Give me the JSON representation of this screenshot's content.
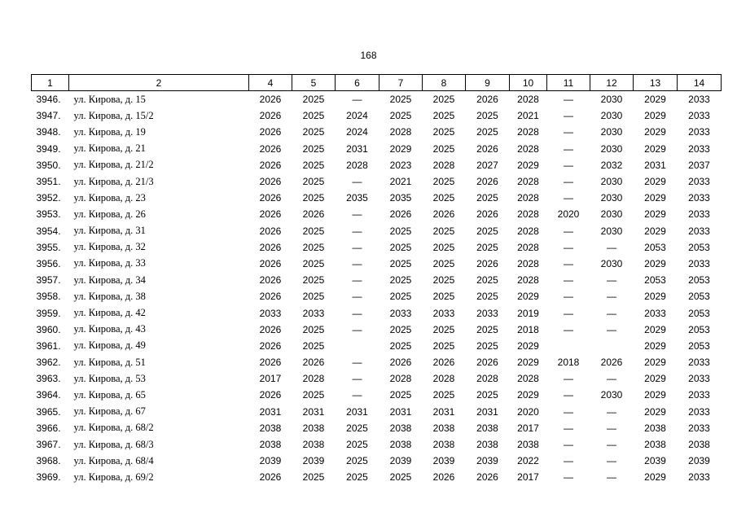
{
  "page_number": "168",
  "table": {
    "header": [
      "1",
      "2",
      "4",
      "5",
      "6",
      "7",
      "8",
      "9",
      "10",
      "11",
      "12",
      "13",
      "14"
    ],
    "rows": [
      [
        "3946.",
        "ул. Кирова, д. 15",
        "2026",
        "2025",
        "—",
        "2025",
        "2025",
        "2026",
        "2028",
        "—",
        "2030",
        "2029",
        "2033"
      ],
      [
        "3947.",
        "ул. Кирова, д. 15/2",
        "2026",
        "2025",
        "2024",
        "2025",
        "2025",
        "2025",
        "2021",
        "—",
        "2030",
        "2029",
        "2033"
      ],
      [
        "3948.",
        "ул. Кирова, д. 19",
        "2026",
        "2025",
        "2024",
        "2028",
        "2025",
        "2025",
        "2028",
        "—",
        "2030",
        "2029",
        "2033"
      ],
      [
        "3949.",
        "ул. Кирова, д. 21",
        "2026",
        "2025",
        "2031",
        "2029",
        "2025",
        "2026",
        "2028",
        "—",
        "2030",
        "2029",
        "2033"
      ],
      [
        "3950.",
        "ул. Кирова, д. 21/2",
        "2026",
        "2025",
        "2028",
        "2023",
        "2028",
        "2027",
        "2029",
        "—",
        "2032",
        "2031",
        "2037"
      ],
      [
        "3951.",
        "ул. Кирова, д. 21/3",
        "2026",
        "2025",
        "—",
        "2021",
        "2025",
        "2026",
        "2028",
        "—",
        "2030",
        "2029",
        "2033"
      ],
      [
        "3952.",
        "ул. Кирова, д. 23",
        "2026",
        "2025",
        "2035",
        "2035",
        "2025",
        "2025",
        "2028",
        "—",
        "2030",
        "2029",
        "2033"
      ],
      [
        "3953.",
        "ул. Кирова, д. 26",
        "2026",
        "2026",
        "—",
        "2026",
        "2026",
        "2026",
        "2028",
        "2020",
        "2030",
        "2029",
        "2033"
      ],
      [
        "3954.",
        "ул. Кирова, д. 31",
        "2026",
        "2025",
        "—",
        "2025",
        "2025",
        "2025",
        "2028",
        "—",
        "2030",
        "2029",
        "2033"
      ],
      [
        "3955.",
        "ул. Кирова, д. 32",
        "2026",
        "2025",
        "—",
        "2025",
        "2025",
        "2025",
        "2028",
        "—",
        "—",
        "2053",
        "2053"
      ],
      [
        "3956.",
        "ул. Кирова, д. 33",
        "2026",
        "2025",
        "—",
        "2025",
        "2025",
        "2026",
        "2028",
        "—",
        "2030",
        "2029",
        "2033"
      ],
      [
        "3957.",
        "ул. Кирова, д. 34",
        "2026",
        "2025",
        "—",
        "2025",
        "2025",
        "2025",
        "2028",
        "—",
        "—",
        "2053",
        "2053"
      ],
      [
        "3958.",
        "ул. Кирова, д. 38",
        "2026",
        "2025",
        "—",
        "2025",
        "2025",
        "2025",
        "2029",
        "—",
        "—",
        "2029",
        "2053"
      ],
      [
        "3959.",
        "ул. Кирова, д. 42",
        "2033",
        "2033",
        "—",
        "2033",
        "2033",
        "2033",
        "2019",
        "—",
        "—",
        "2033",
        "2053"
      ],
      [
        "3960.",
        "ул. Кирова, д. 43",
        "2026",
        "2025",
        "—",
        "2025",
        "2025",
        "2025",
        "2018",
        "—",
        "—",
        "2029",
        "2053"
      ],
      [
        "3961.",
        "ул. Кирова, д. 49",
        "2026",
        "2025",
        null,
        "2025",
        "2025",
        "2025",
        "2029",
        null,
        null,
        "2029",
        "2053"
      ],
      [
        "3962.",
        "ул. Кирова, д. 51",
        "2026",
        "2026",
        "—",
        "2026",
        "2026",
        "2026",
        "2029",
        "2018",
        "2026",
        "2029",
        "2033"
      ],
      [
        "3963.",
        "ул. Кирова, д. 53",
        "2017",
        "2028",
        "—",
        "2028",
        "2028",
        "2028",
        "2028",
        "—",
        "—",
        "2029",
        "2033"
      ],
      [
        "3964.",
        "ул. Кирова, д. 65",
        "2026",
        "2025",
        "—",
        "2025",
        "2025",
        "2025",
        "2029",
        "—",
        "2030",
        "2029",
        "2033"
      ],
      [
        "3965.",
        "ул. Кирова, д. 67",
        "2031",
        "2031",
        "2031",
        "2031",
        "2031",
        "2031",
        "2020",
        "—",
        "—",
        "2029",
        "2033"
      ],
      [
        "3966.",
        "ул. Кирова, д. 68/2",
        "2038",
        "2038",
        "2025",
        "2038",
        "2038",
        "2038",
        "2017",
        "—",
        "—",
        "2038",
        "2033"
      ],
      [
        "3967.",
        "ул. Кирова, д. 68/3",
        "2038",
        "2038",
        "2025",
        "2038",
        "2038",
        "2038",
        "2038",
        "—",
        "—",
        "2038",
        "2038"
      ],
      [
        "3968.",
        "ул. Кирова, д. 68/4",
        "2039",
        "2039",
        "2025",
        "2039",
        "2039",
        "2039",
        "2022",
        "—",
        "—",
        "2039",
        "2039"
      ],
      [
        "3969.",
        "ул. Кирова, д. 69/2",
        "2026",
        "2025",
        "2025",
        "2025",
        "2026",
        "2026",
        "2017",
        "—",
        "—",
        "2029",
        "2033"
      ]
    ]
  }
}
